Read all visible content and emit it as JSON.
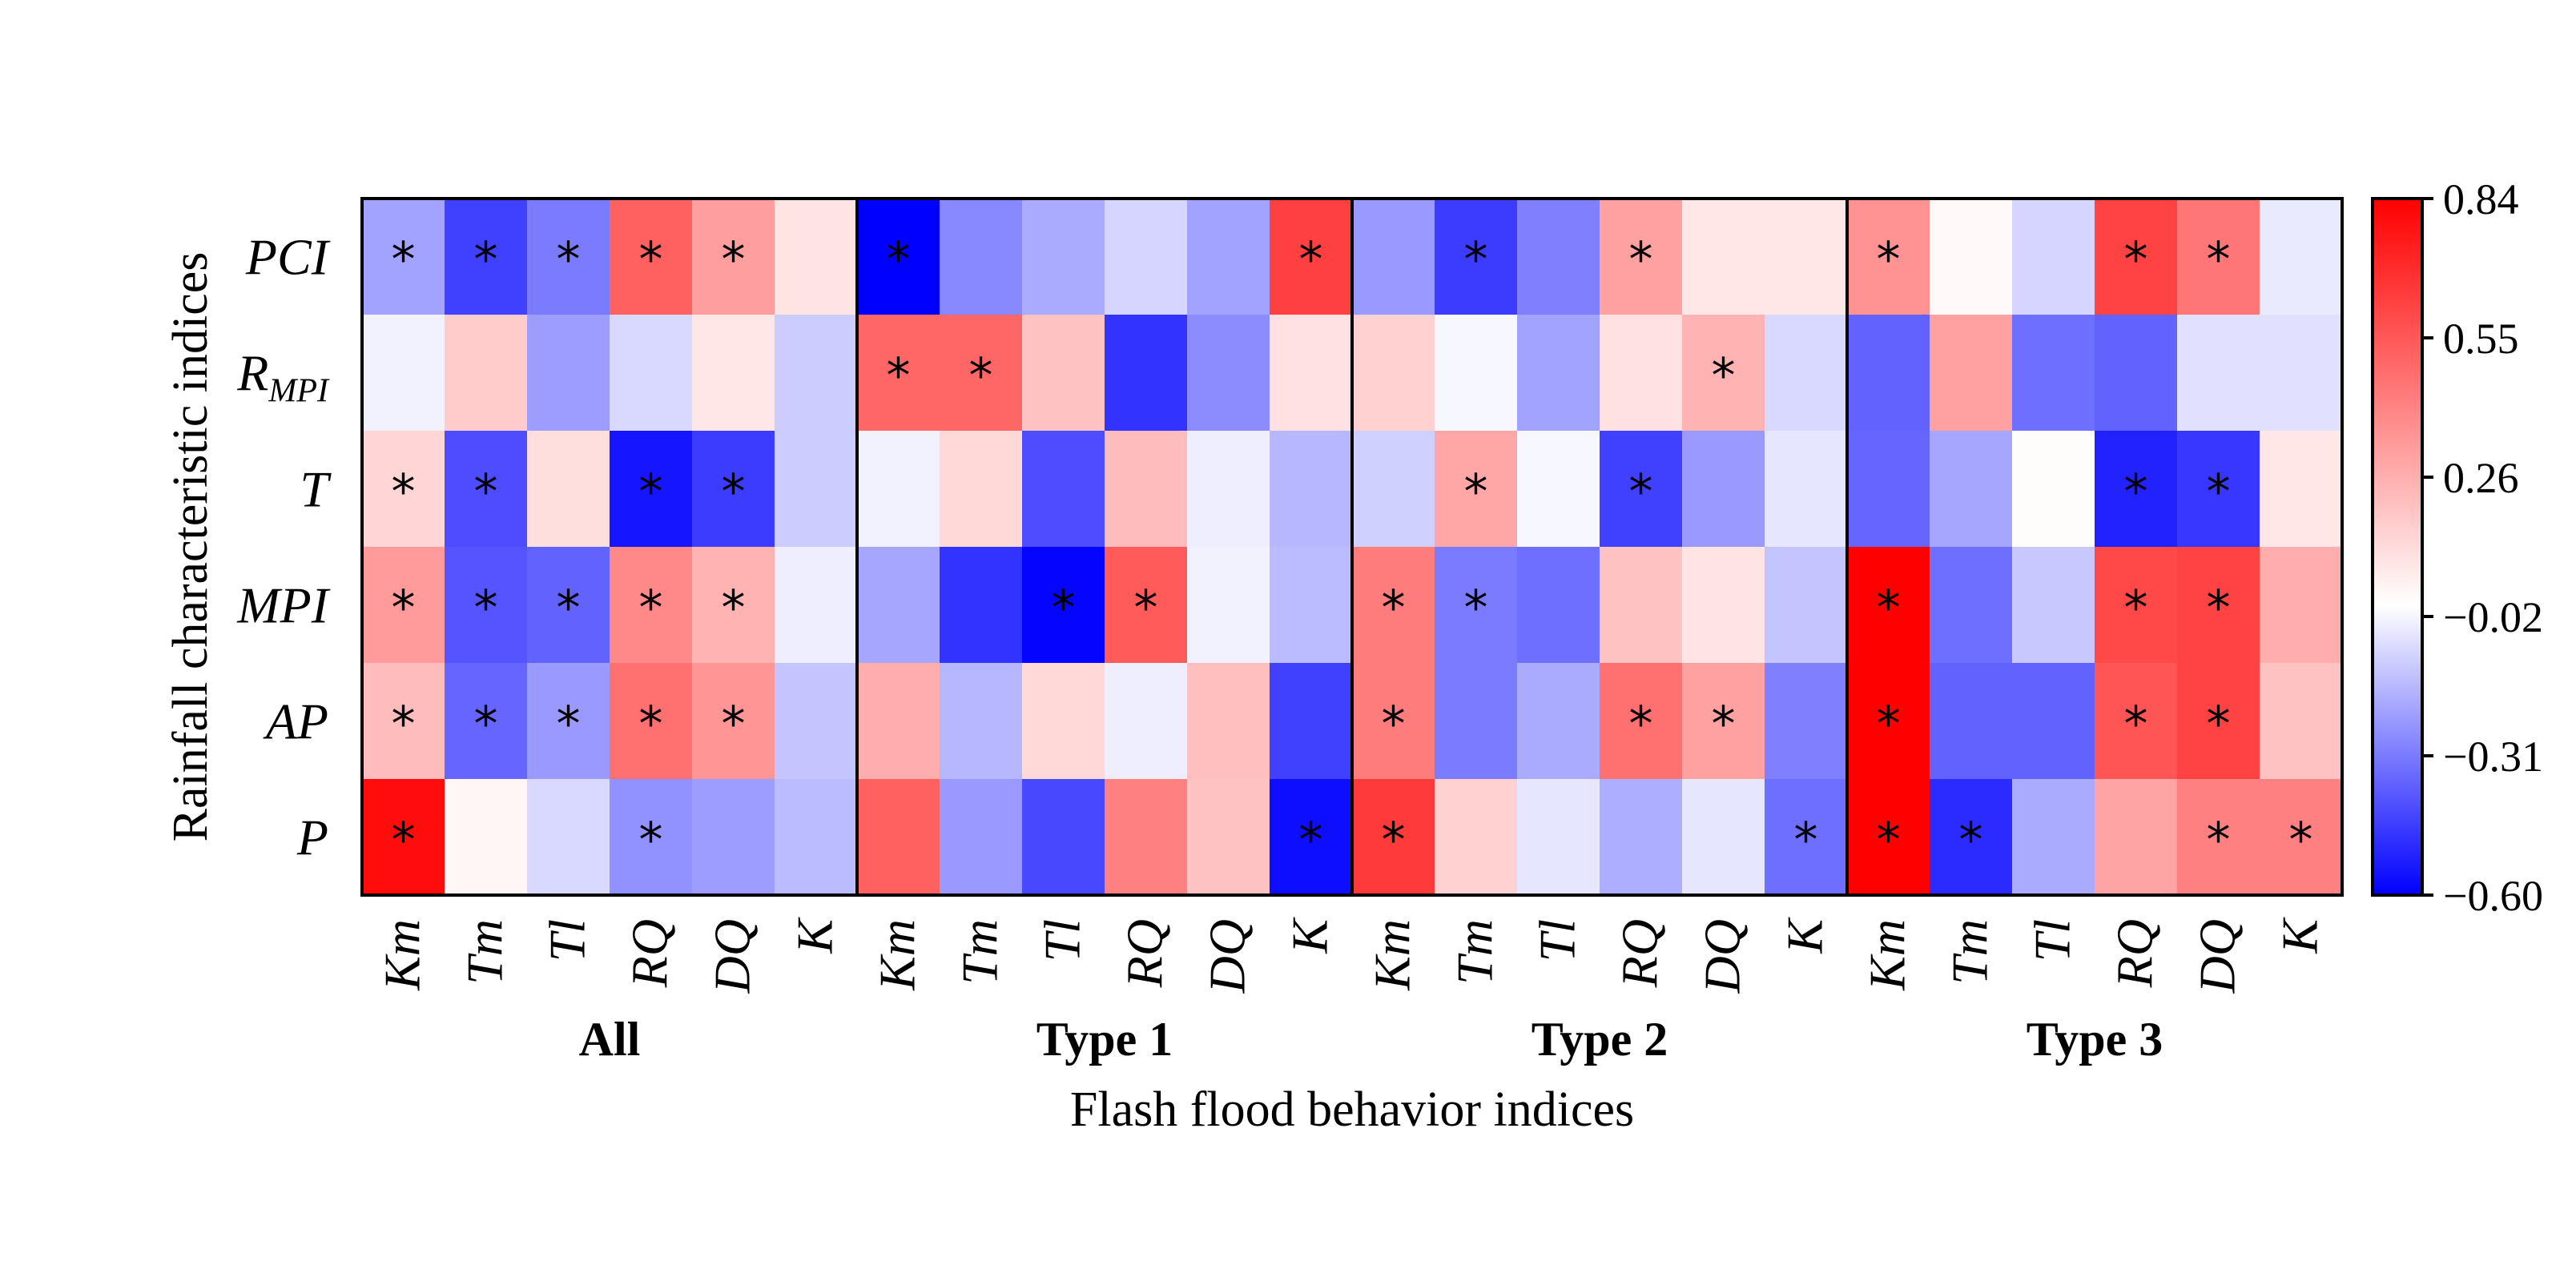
{
  "chart_data": {
    "type": "heatmap",
    "title": "",
    "xlabel": "Flash flood behavior indices",
    "ylabel": "Rainfall characteristic indices",
    "groups": [
      "All",
      "Type 1",
      "Type 2",
      "Type 3"
    ],
    "columns": [
      "Km",
      "Tm",
      "Tl",
      "RQ",
      "DQ",
      "K"
    ],
    "rows": [
      {
        "base": "PCI",
        "sub": ""
      },
      {
        "base": "R",
        "sub": "MPI"
      },
      {
        "base": "T",
        "sub": ""
      },
      {
        "base": "MPI",
        "sub": ""
      },
      {
        "base": "AP",
        "sub": ""
      },
      {
        "base": "P",
        "sub": ""
      }
    ],
    "values": [
      [
        -0.22,
        -0.45,
        -0.31,
        0.52,
        0.32,
        0.09,
        -0.6,
        -0.28,
        -0.2,
        -0.1,
        -0.22,
        0.63,
        -0.24,
        -0.46,
        -0.3,
        0.31,
        0.08,
        0.08,
        0.36,
        0.02,
        -0.1,
        0.62,
        0.45,
        -0.05
      ],
      [
        -0.03,
        0.17,
        -0.23,
        -0.09,
        0.08,
        -0.12,
        0.5,
        0.5,
        0.2,
        -0.48,
        -0.27,
        0.1,
        0.15,
        -0.02,
        -0.22,
        0.1,
        0.25,
        -0.09,
        -0.37,
        0.31,
        -0.34,
        -0.37,
        -0.07,
        -0.07
      ],
      [
        0.14,
        -0.42,
        0.11,
        -0.55,
        -0.46,
        -0.12,
        -0.03,
        0.13,
        -0.42,
        0.22,
        -0.04,
        -0.17,
        -0.11,
        0.29,
        -0.02,
        -0.45,
        -0.24,
        -0.06,
        -0.36,
        -0.21,
        0.01,
        -0.52,
        -0.47,
        0.08
      ],
      [
        0.33,
        -0.4,
        -0.37,
        0.39,
        0.25,
        -0.04,
        -0.21,
        -0.48,
        -0.59,
        0.54,
        -0.03,
        -0.16,
        0.43,
        -0.31,
        -0.34,
        0.2,
        0.09,
        -0.14,
        0.84,
        -0.34,
        -0.13,
        0.6,
        0.62,
        0.27
      ],
      [
        0.22,
        -0.36,
        -0.24,
        0.47,
        0.35,
        -0.14,
        0.27,
        -0.17,
        0.13,
        -0.04,
        0.21,
        -0.45,
        0.43,
        -0.31,
        -0.2,
        0.47,
        0.31,
        -0.3,
        0.84,
        -0.37,
        -0.37,
        0.56,
        0.62,
        0.2
      ],
      [
        0.8,
        0.03,
        -0.09,
        -0.26,
        -0.23,
        -0.16,
        0.52,
        -0.24,
        -0.43,
        0.42,
        0.2,
        -0.57,
        0.65,
        0.15,
        -0.06,
        -0.19,
        -0.06,
        -0.34,
        0.84,
        -0.5,
        -0.2,
        0.3,
        0.42,
        0.42
      ]
    ],
    "significant": [
      [
        1,
        1,
        1,
        1,
        1,
        0,
        1,
        0,
        0,
        0,
        0,
        1,
        0,
        1,
        0,
        1,
        0,
        0,
        1,
        0,
        0,
        1,
        1,
        0
      ],
      [
        0,
        0,
        0,
        0,
        0,
        0,
        1,
        1,
        0,
        0,
        0,
        0,
        0,
        0,
        0,
        0,
        1,
        0,
        0,
        0,
        0,
        0,
        0,
        0
      ],
      [
        1,
        1,
        0,
        1,
        1,
        0,
        0,
        0,
        0,
        0,
        0,
        0,
        0,
        1,
        0,
        1,
        0,
        0,
        0,
        0,
        0,
        1,
        1,
        0
      ],
      [
        1,
        1,
        1,
        1,
        1,
        0,
        0,
        0,
        1,
        1,
        0,
        0,
        1,
        1,
        0,
        0,
        0,
        0,
        1,
        0,
        0,
        1,
        1,
        0
      ],
      [
        1,
        1,
        1,
        1,
        1,
        0,
        0,
        0,
        0,
        0,
        0,
        0,
        1,
        0,
        0,
        1,
        1,
        0,
        1,
        0,
        0,
        1,
        1,
        0
      ],
      [
        1,
        0,
        0,
        1,
        0,
        0,
        0,
        0,
        0,
        0,
        0,
        1,
        1,
        0,
        0,
        0,
        0,
        1,
        1,
        1,
        0,
        0,
        1,
        1
      ]
    ],
    "marker": "*",
    "colorbar": {
      "min": -0.6,
      "max": 0.84,
      "ticks": [
        "0.84",
        "0.55",
        "0.26",
        "−0.02",
        "−0.31",
        "−0.60"
      ],
      "low_color": "#0000ff",
      "mid_color": "#ffffff",
      "high_color": "#ff0000"
    }
  }
}
